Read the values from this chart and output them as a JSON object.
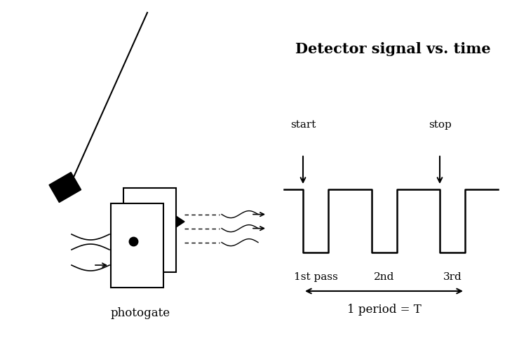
{
  "bg_color": "#ffffff",
  "title": "Detector signal vs. time",
  "title_fontsize": 15,
  "title_fontweight": "bold",
  "signal_labels": [
    "1st pass",
    "2nd",
    "3rd"
  ],
  "start_label": "start",
  "stop_label": "stop",
  "period_label": "1 period = T",
  "photogate_label": "photogate",
  "line_color": "#000000",
  "fig_w": 7.2,
  "fig_h": 4.99,
  "dpi": 100
}
